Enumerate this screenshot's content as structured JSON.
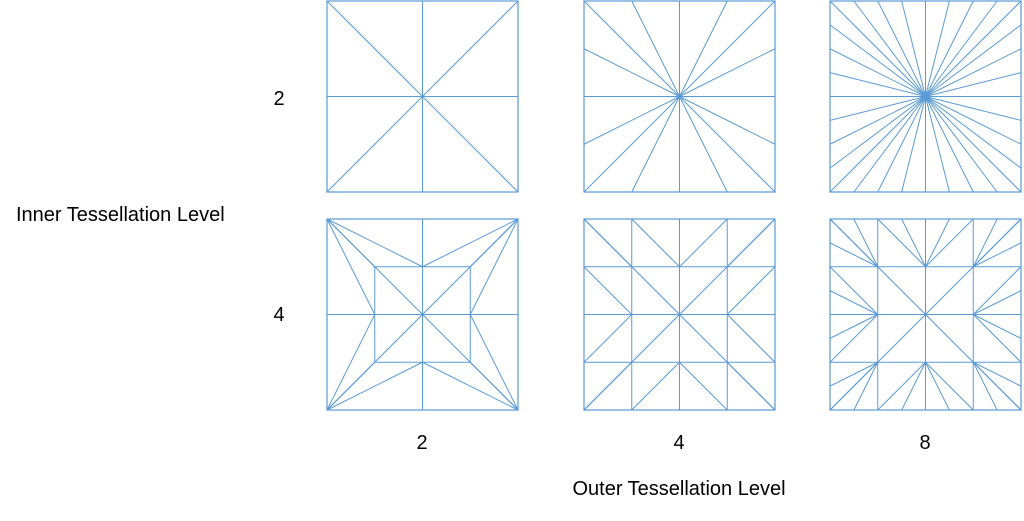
{
  "labels": {
    "inner_axis": "Inner Tessellation Level",
    "outer_axis": "Outer Tessellation Level",
    "inner_levels": [
      "2",
      "4"
    ],
    "outer_levels": [
      "2",
      "4",
      "8"
    ]
  },
  "grid": {
    "rows": [
      {
        "inner": 2,
        "cells": [
          {
            "outer": 2
          },
          {
            "outer": 4
          },
          {
            "outer": 8
          }
        ]
      },
      {
        "inner": 4,
        "cells": [
          {
            "outer": 2
          },
          {
            "outer": 4
          },
          {
            "outer": 8
          }
        ]
      }
    ]
  },
  "colors": {
    "line": "#5b9bd5",
    "text": "#000000",
    "background": "#ffffff"
  }
}
